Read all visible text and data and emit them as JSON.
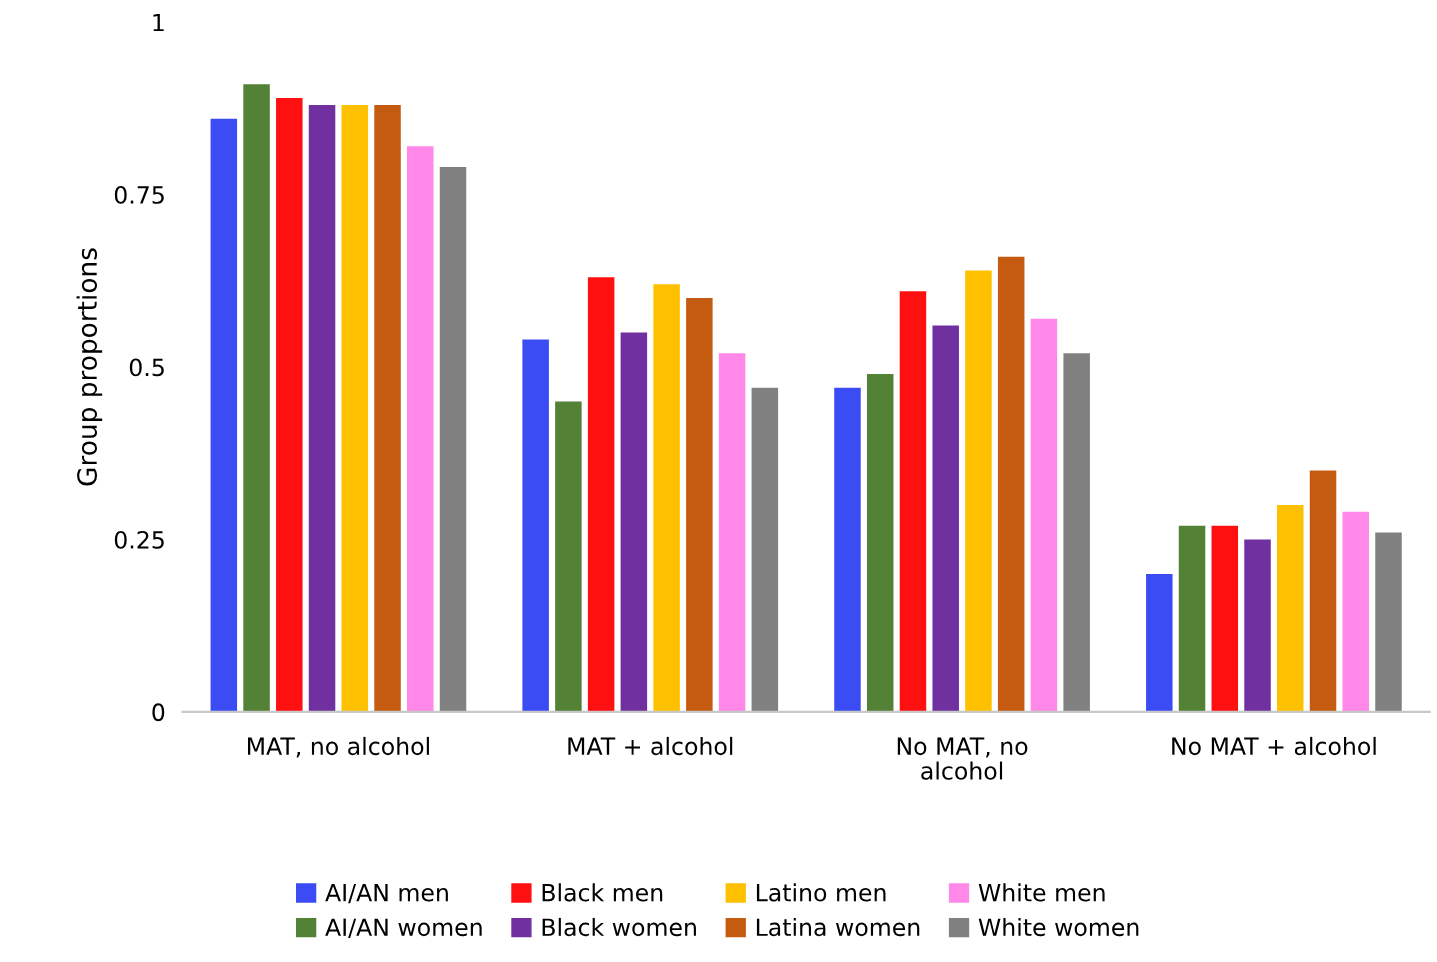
{
  "chart_data": {
    "type": "bar",
    "ylabel": "Group proportions",
    "categories": [
      "MAT, no alcohol",
      "MAT + alcohol",
      "No MAT, no\nalcohol",
      "No MAT + alcohol"
    ],
    "series": [
      {
        "name": "AI/AN men",
        "color": "#3c4cf5",
        "values": [
          0.86,
          0.54,
          0.47,
          0.2
        ]
      },
      {
        "name": "AI/AN women",
        "color": "#538135",
        "values": [
          0.91,
          0.45,
          0.49,
          0.27
        ]
      },
      {
        "name": "Black men",
        "color": "#ff1010",
        "values": [
          0.89,
          0.63,
          0.61,
          0.27
        ]
      },
      {
        "name": "Black women",
        "color": "#7030a0",
        "values": [
          0.88,
          0.55,
          0.56,
          0.25
        ]
      },
      {
        "name": "Latino men",
        "color": "#ffc000",
        "values": [
          0.88,
          0.62,
          0.64,
          0.3
        ]
      },
      {
        "name": "Latina women",
        "color": "#c55a11",
        "values": [
          0.88,
          0.6,
          0.66,
          0.35
        ]
      },
      {
        "name": "White men",
        "color": "#ff88e8",
        "values": [
          0.82,
          0.52,
          0.57,
          0.29
        ]
      },
      {
        "name": "White women",
        "color": "#808080",
        "values": [
          0.79,
          0.47,
          0.52,
          0.26
        ]
      }
    ],
    "ylim": [
      0,
      1
    ],
    "yticks": [
      0,
      0.25,
      0.5,
      0.75,
      1
    ],
    "grid": false,
    "legend": "bottom"
  }
}
